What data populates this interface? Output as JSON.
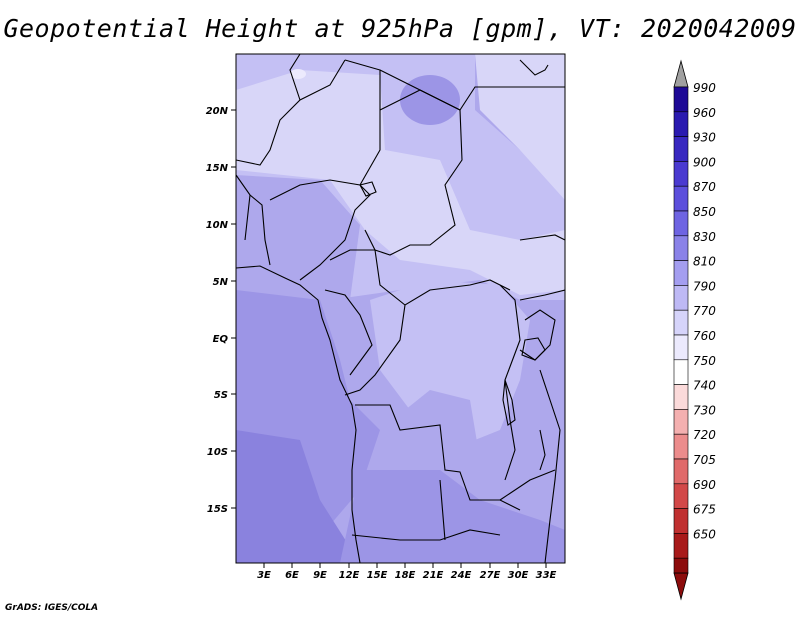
{
  "title": "Geopotential Height at 925hPa [gpm], VT: 2020042009",
  "credit": "GrADS: IGES/COLA",
  "map": {
    "lat_labels": [
      "20N",
      "15N",
      "10N",
      "5N",
      "EQ",
      "5S",
      "10S",
      "15S"
    ],
    "lon_labels": [
      "3E",
      "6E",
      "9E",
      "12E",
      "15E",
      "18E",
      "21E",
      "24E",
      "27E",
      "30E",
      "33E"
    ],
    "lon_range": [
      0,
      35
    ],
    "lat_range": [
      -20,
      24
    ]
  },
  "colorbar": {
    "levels": [
      "990",
      "960",
      "930",
      "900",
      "870",
      "850",
      "830",
      "810",
      "790",
      "770",
      "760",
      "750",
      "740",
      "730",
      "720",
      "705",
      "690",
      "675",
      "650"
    ],
    "colors": [
      "#1e0a96",
      "#2a1ab0",
      "#3828c0",
      "#4a3ad0",
      "#5c4fdc",
      "#6e64e2",
      "#8a82e8",
      "#a49ef0",
      "#beb9f5",
      "#d6d4fa",
      "#eceafd",
      "#ffffff",
      "#fbdada",
      "#f4b0b0",
      "#ec8c8c",
      "#e06a6a",
      "#d24848",
      "#c03030",
      "#a81a1a",
      "#8c0c0c"
    ],
    "top_arrow_color": "#a0a0a0",
    "bottom_arrow_color": "#8c0c0c"
  },
  "field_colors": {
    "c770": "#d8d6f8",
    "c790": "#c4c0f4",
    "c810": "#aea8ec",
    "c830": "#9c95e6",
    "c850": "#8a82de",
    "c760": "#eceafd"
  }
}
